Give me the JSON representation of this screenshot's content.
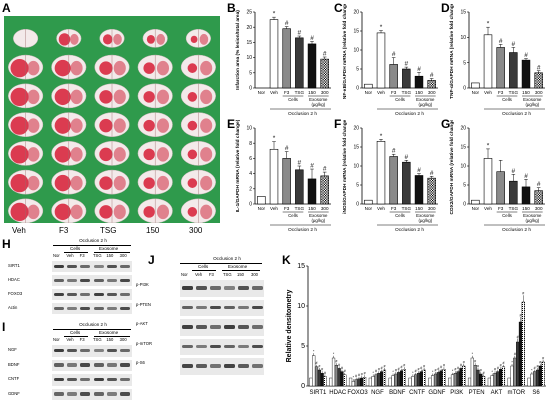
{
  "panels": {
    "a": "A",
    "b": "B",
    "c": "C",
    "d": "D",
    "e": "E",
    "f": "F",
    "g": "G",
    "h": "H",
    "i": "I",
    "j": "J",
    "k": "K"
  },
  "brain": {
    "groups": [
      "Veh",
      "F3",
      "TSG",
      "150",
      "300"
    ],
    "slices_per_group": 7
  },
  "common": {
    "occlusion": "Occlusion 2 h",
    "cells": "Cells",
    "exosome": "Exosome",
    "exosome_unit": "(μg/kg)"
  },
  "chart_data": [
    {
      "panel": "B",
      "type": "bar",
      "ylabel": "Infarction area (% lesion/total area)",
      "ylim": [
        0,
        25
      ],
      "yticks": [
        0,
        5,
        10,
        15,
        20,
        25
      ],
      "categories": [
        "Nor",
        "Veh",
        "F3",
        "TSG",
        "150",
        "300"
      ],
      "values": [
        0,
        22.5,
        19.5,
        16.5,
        14.5,
        9.5
      ],
      "errors": [
        0,
        0.8,
        0.7,
        0.6,
        0.8,
        0.7
      ],
      "marks": [
        "",
        "*",
        "#",
        "#",
        "#",
        "#"
      ]
    },
    {
      "panel": "C",
      "type": "bar",
      "ylabel": "NF-κB/GAPDH mRNA (relative fold change)",
      "ylim": [
        0,
        20
      ],
      "yticks": [
        0,
        5,
        10,
        15,
        20
      ],
      "categories": [
        "Nor",
        "Veh",
        "F3",
        "TSG",
        "150",
        "300"
      ],
      "values": [
        1,
        14.5,
        6.2,
        5.0,
        3.1,
        2.0
      ],
      "errors": [
        0,
        0.6,
        1.8,
        0.5,
        1.0,
        0.5
      ],
      "marks": [
        "",
        "*",
        "#",
        "#",
        "#",
        "#"
      ]
    },
    {
      "panel": "D",
      "type": "bar",
      "ylabel": "TNF-α/GAPDH mRNA (relative fold change)",
      "ylim": [
        0,
        15
      ],
      "yticks": [
        0,
        5,
        10,
        15
      ],
      "categories": [
        "Nor",
        "Veh",
        "F3",
        "TSG",
        "150",
        "300"
      ],
      "values": [
        1,
        10.5,
        8.0,
        7.0,
        5.5,
        3.0
      ],
      "errors": [
        0,
        1.5,
        0.6,
        1.0,
        0.3,
        0.4
      ],
      "marks": [
        "",
        "*",
        "#",
        "#",
        "#",
        "#"
      ]
    },
    {
      "panel": "E",
      "type": "bar",
      "ylabel": "IL-1/GAPDH mRNA (relative fold change)",
      "ylim": [
        0,
        10
      ],
      "yticks": [
        0,
        2,
        4,
        6,
        8,
        10
      ],
      "categories": [
        "Nor",
        "Veh",
        "F3",
        "TSG",
        "150",
        "300"
      ],
      "values": [
        1,
        7.2,
        6.0,
        4.5,
        3.3,
        3.7
      ],
      "errors": [
        0,
        1.0,
        0.9,
        0.5,
        1.3,
        0.5
      ],
      "marks": [
        "",
        "*",
        "#",
        "#",
        "#",
        "#"
      ]
    },
    {
      "panel": "F",
      "type": "bar",
      "ylabel": "iNOS/GAPDH mRNA (relative fold change)",
      "ylim": [
        0,
        20
      ],
      "yticks": [
        0,
        5,
        10,
        15,
        20
      ],
      "categories": [
        "Nor",
        "Veh",
        "F3",
        "TSG",
        "150",
        "300"
      ],
      "values": [
        1,
        16.5,
        12.5,
        11.0,
        7.5,
        6.8
      ],
      "errors": [
        0,
        0.5,
        0.6,
        0.5,
        0.5,
        0.5
      ],
      "marks": [
        "",
        "*",
        "#",
        "#",
        "#",
        "#"
      ]
    },
    {
      "panel": "G",
      "type": "bar",
      "ylabel": "COX2/GAPDH mRNA (relative fold change)",
      "ylim": [
        0,
        20
      ],
      "yticks": [
        0,
        5,
        10,
        15,
        20
      ],
      "categories": [
        "Nor",
        "Veh",
        "F3",
        "TSG",
        "150",
        "300"
      ],
      "values": [
        1,
        12.0,
        8.5,
        6.0,
        4.5,
        3.5
      ],
      "errors": [
        0,
        2.5,
        3.0,
        1.8,
        2.0,
        0.8
      ],
      "marks": [
        "",
        "*",
        "",
        "#",
        "#",
        "#"
      ]
    },
    {
      "panel": "K",
      "type": "bar",
      "ylabel": "Relative densitometry",
      "ylim": [
        0,
        15
      ],
      "yticks": [
        0,
        5,
        10,
        15
      ],
      "categories": [
        "SIRT1",
        "HDAC",
        "FOXO3",
        "NGF",
        "BDNF",
        "CNTF",
        "GDNF",
        "PI3K",
        "PTEN",
        "AKT",
        "mTOR",
        "S6"
      ],
      "groups": [
        "Nor",
        "Veh",
        "F3",
        "TSG",
        "150",
        "300"
      ],
      "values": [
        [
          1.0,
          3.8,
          2.4,
          2.0,
          1.6,
          1.2
        ],
        [
          1.0,
          3.5,
          2.6,
          2.2,
          1.8,
          1.4
        ],
        [
          1.0,
          0.6,
          0.8,
          0.9,
          1.0,
          1.1
        ],
        [
          1.0,
          1.2,
          1.4,
          1.6,
          1.8,
          2.0
        ],
        [
          1.0,
          1.3,
          1.5,
          1.7,
          1.9,
          2.1
        ],
        [
          1.0,
          1.2,
          1.4,
          1.6,
          1.8,
          2.0
        ],
        [
          1.0,
          1.3,
          1.5,
          1.7,
          1.9,
          2.1
        ],
        [
          1.0,
          1.4,
          1.6,
          1.8,
          2.2,
          2.5
        ],
        [
          1.0,
          3.5,
          2.6,
          2.0,
          1.5,
          1.2
        ],
        [
          1.0,
          1.3,
          1.6,
          1.8,
          2.1,
          2.4
        ],
        [
          1.0,
          2.5,
          3.5,
          5.5,
          8.0,
          10.5
        ],
        [
          1.0,
          1.5,
          1.8,
          2.0,
          2.5,
          3.0
        ]
      ]
    }
  ],
  "western_h": {
    "lanes": [
      "Nor",
      "Veh",
      "F3",
      "TSG",
      "150",
      "300"
    ],
    "rows": [
      "SIRT1",
      "HDAC",
      "FOXO3",
      "Actin"
    ]
  },
  "western_i": {
    "lanes": [
      "Nor",
      "Veh",
      "F3",
      "TSG",
      "150",
      "300"
    ],
    "rows": [
      "NGF",
      "BDNF",
      "CNTF",
      "GDNF"
    ]
  },
  "western_j": {
    "lanes": [
      "Nor",
      "Veh",
      "F3",
      "TSG",
      "150",
      "300"
    ],
    "rows": [
      "p-PI3K",
      "p-PTEN",
      "p-AKT",
      "p-mTOR",
      "p-S6"
    ]
  }
}
